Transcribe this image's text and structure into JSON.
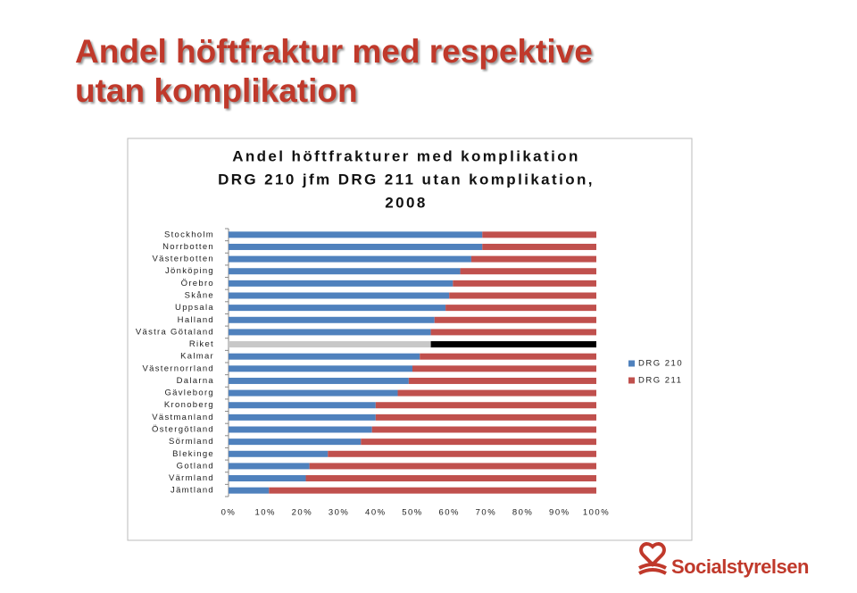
{
  "slide_title": [
    "Andel höftfraktur med respektive",
    "utan komplikation"
  ],
  "logo": "Socialstyrelsen",
  "chart_data": {
    "type": "stacked-hbar",
    "title": [
      "Andel höftfrakturer med komplikation",
      "DRG 210 jfm DRG 211 utan komplikation,",
      "2008"
    ],
    "categories": [
      "Stockholm",
      "Norrbotten",
      "Västerbotten",
      "Jönköping",
      "Örebro",
      "Skåne",
      "Uppsala",
      "Halland",
      "Västra Götaland",
      "Riket",
      "Kalmar",
      "Västernorrland",
      "Dalarna",
      "Gävleborg",
      "Kronoberg",
      "Västmanland",
      "Östergötland",
      "Sörmland",
      "Blekinge",
      "Gotland",
      "Värmland",
      "Jämtland"
    ],
    "series": [
      {
        "name": "DRG 210",
        "color": "#4f81bd",
        "values": [
          69,
          69,
          66,
          63,
          61,
          60,
          59,
          56,
          55,
          55,
          52,
          50,
          49,
          46,
          40,
          40,
          39,
          36,
          27,
          22,
          21,
          11
        ]
      },
      {
        "name": "DRG 211",
        "color": "#c0504d",
        "values": [
          31,
          31,
          34,
          37,
          39,
          40,
          41,
          44,
          45,
          45,
          48,
          50,
          51,
          54,
          60,
          60,
          61,
          64,
          73,
          78,
          79,
          89
        ]
      }
    ],
    "highlight_category": "Riket",
    "highlight_colors": [
      "#c8c8c8",
      "#000000"
    ],
    "xlim": [
      0,
      100
    ],
    "xticks": [
      {
        "value": 0,
        "label": "0%"
      },
      {
        "value": 10,
        "label": "10%"
      },
      {
        "value": 20,
        "label": "20%"
      },
      {
        "value": 30,
        "label": "30%"
      },
      {
        "value": 40,
        "label": "40%"
      },
      {
        "value": 50,
        "label": "50%"
      },
      {
        "value": 60,
        "label": "60%"
      },
      {
        "value": 70,
        "label": "70%"
      },
      {
        "value": 80,
        "label": "80%"
      },
      {
        "value": 90,
        "label": "90%"
      },
      {
        "value": 100,
        "label": "100%"
      }
    ],
    "legend": "right"
  }
}
